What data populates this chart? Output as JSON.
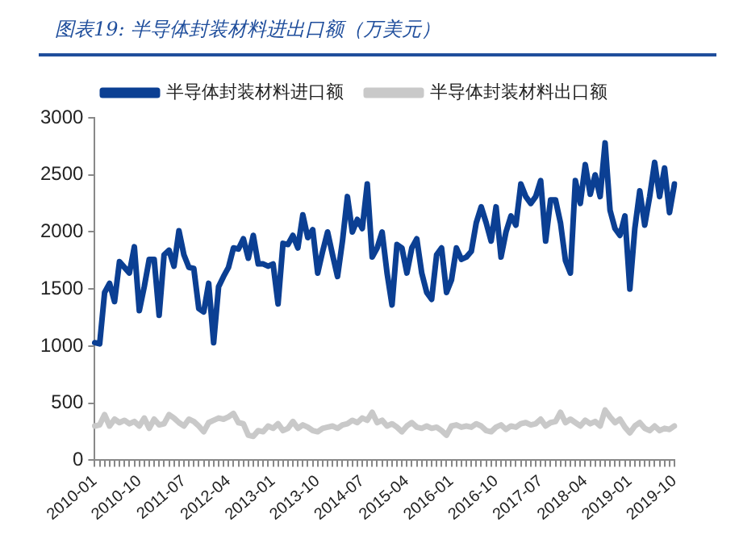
{
  "chart_data": {
    "type": "line",
    "title": "图表19:  半导体封装材料进出口额（万美元）",
    "categories": [
      "2010-01",
      null,
      null,
      null,
      null,
      null,
      null,
      null,
      null,
      "2010-10",
      null,
      null,
      null,
      null,
      null,
      null,
      null,
      null,
      "2011-07",
      null,
      null,
      null,
      null,
      null,
      null,
      null,
      null,
      "2012-04",
      null,
      null,
      null,
      null,
      null,
      null,
      null,
      null,
      "2013-01",
      null,
      null,
      null,
      null,
      null,
      null,
      null,
      null,
      "2013-10",
      null,
      null,
      null,
      null,
      null,
      null,
      null,
      null,
      "2014-07",
      null,
      null,
      null,
      null,
      null,
      null,
      null,
      null,
      "2015-04",
      null,
      null,
      null,
      null,
      null,
      null,
      null,
      null,
      "2016-01",
      null,
      null,
      null,
      null,
      null,
      null,
      null,
      null,
      "2016-10",
      null,
      null,
      null,
      null,
      null,
      null,
      null,
      null,
      "2017-07",
      null,
      null,
      null,
      null,
      null,
      null,
      null,
      null,
      "2018-04",
      null,
      null,
      null,
      null,
      null,
      null,
      null,
      null,
      "2019-01",
      null,
      null,
      null,
      null,
      null,
      null,
      null,
      null,
      "2019-10"
    ],
    "series": [
      {
        "name": "半导体封装材料进口额",
        "color": "#0b3f93",
        "values": [
          1030,
          1020,
          1470,
          1550,
          1390,
          1740,
          1690,
          1640,
          1870,
          1310,
          1520,
          1760,
          1760,
          1270,
          1800,
          1840,
          1700,
          2010,
          1800,
          1690,
          1680,
          1330,
          1300,
          1550,
          1030,
          1520,
          1610,
          1690,
          1860,
          1850,
          1940,
          1770,
          1970,
          1720,
          1720,
          1700,
          1720,
          1370,
          1900,
          1890,
          1970,
          1860,
          2150,
          1950,
          2020,
          1640,
          1830,
          2000,
          1800,
          1610,
          1920,
          2310,
          2000,
          2110,
          2030,
          2420,
          1780,
          1860,
          2000,
          1640,
          1360,
          1890,
          1860,
          1640,
          1860,
          1940,
          1640,
          1470,
          1410,
          1800,
          1860,
          1470,
          1580,
          1860,
          1760,
          1780,
          1830,
          2080,
          2220,
          2080,
          1920,
          2220,
          1780,
          2000,
          2140,
          2060,
          2420,
          2310,
          2250,
          2310,
          2450,
          1920,
          2280,
          2280,
          2080,
          1750,
          1640,
          2450,
          2250,
          2590,
          2330,
          2500,
          2310,
          2780,
          2190,
          2030,
          1970,
          2140,
          1500,
          2030,
          2360,
          2060,
          2310,
          2610,
          2310,
          2560,
          2170,
          2420
        ]
      },
      {
        "name": "半导体封装材料出口额",
        "color": "#c9c9c9",
        "values": [
          300,
          310,
          400,
          300,
          360,
          330,
          350,
          320,
          340,
          300,
          370,
          280,
          360,
          310,
          320,
          400,
          370,
          330,
          300,
          360,
          340,
          300,
          250,
          330,
          350,
          370,
          360,
          380,
          410,
          330,
          320,
          220,
          210,
          260,
          250,
          300,
          280,
          320,
          260,
          280,
          340,
          280,
          310,
          290,
          260,
          250,
          280,
          290,
          300,
          280,
          310,
          320,
          350,
          330,
          370,
          350,
          420,
          330,
          350,
          300,
          320,
          290,
          250,
          300,
          330,
          290,
          280,
          300,
          280,
          290,
          260,
          220,
          300,
          310,
          290,
          300,
          290,
          320,
          300,
          260,
          250,
          290,
          310,
          270,
          300,
          290,
          320,
          330,
          310,
          320,
          360,
          300,
          330,
          340,
          420,
          330,
          360,
          330,
          300,
          350,
          320,
          340,
          300,
          440,
          380,
          330,
          360,
          290,
          240,
          300,
          330,
          280,
          260,
          300,
          260,
          280,
          270,
          300
        ]
      }
    ],
    "ylim": [
      0,
      3000
    ],
    "yticks": [
      0,
      500,
      1000,
      1500,
      2000,
      2500,
      3000
    ],
    "grid": false,
    "legend": "top",
    "marker": "none",
    "line_style": "solid"
  }
}
